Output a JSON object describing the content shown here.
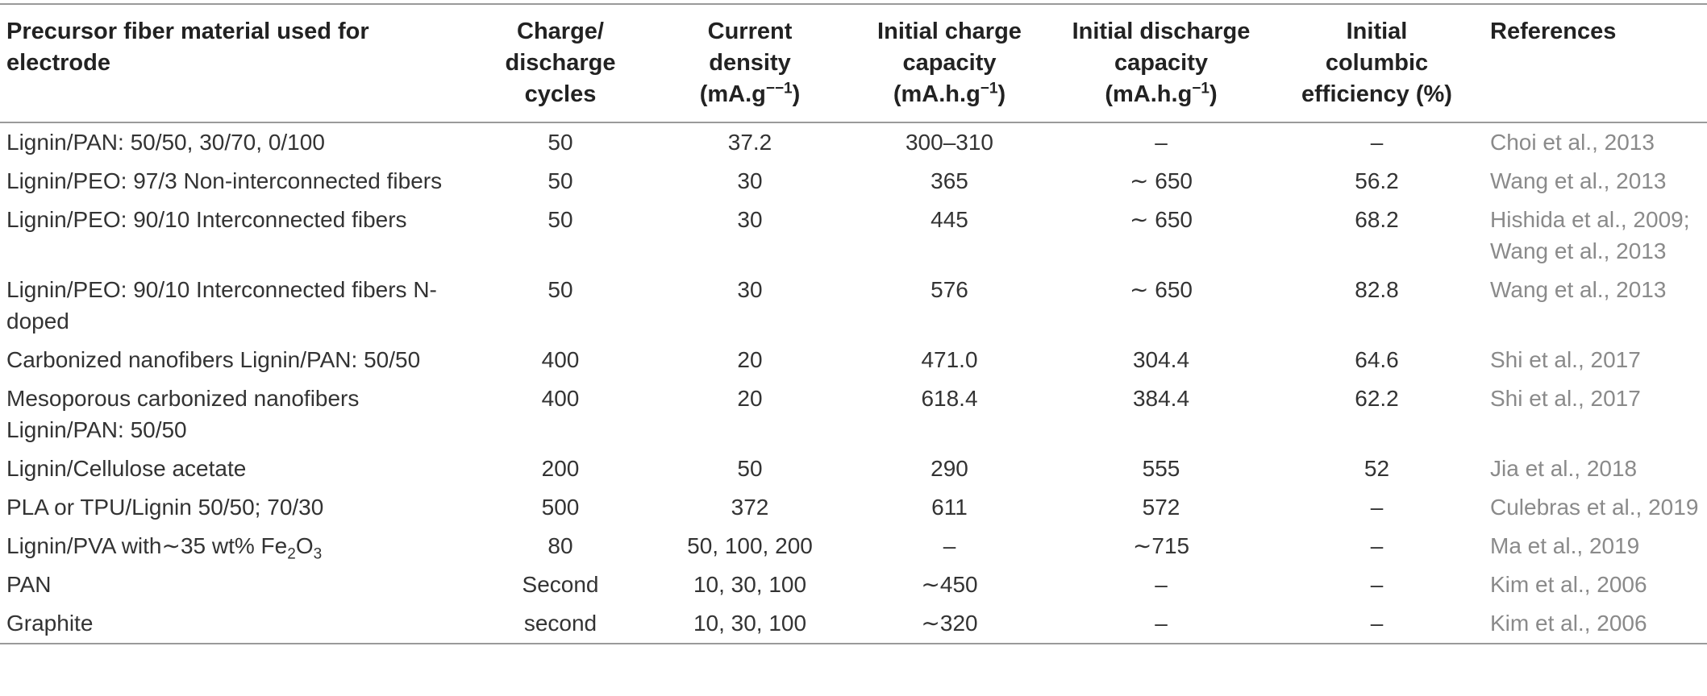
{
  "headers": [
    "Precursor fiber material used for electrode",
    "Charge/ discharge cycles",
    "Current density (mA.g−−1)",
    "Initial charge capacity (mA.h.g−1)",
    "Initial discharge capacity (mA.h.g−1)",
    "Initial columbic efficiency (%)",
    "References"
  ],
  "rows": [
    {
      "material": "Lignin/PAN: 50/50, 30/70, 0/100",
      "cycles": "50",
      "current": "37.2",
      "charge": "300–310",
      "discharge": "–",
      "efficiency": "–",
      "refs": [
        "Choi et al., 2013"
      ]
    },
    {
      "material": "Lignin/PEO: 97/3 Non-interconnected fibers",
      "cycles": "50",
      "current": "30",
      "charge": "365",
      "discharge": "∼ 650",
      "efficiency": "56.2",
      "refs": [
        "Wang et al., 2013"
      ]
    },
    {
      "material": "Lignin/PEO: 90/10 Interconnected fibers",
      "cycles": "50",
      "current": "30",
      "charge": "445",
      "discharge": "∼ 650",
      "efficiency": "68.2",
      "refs": [
        "Hishida et al., 2009;",
        "Wang et al., 2013"
      ]
    },
    {
      "material": "Lignin/PEO: 90/10 Interconnected fibers N-doped",
      "cycles": "50",
      "current": "30",
      "charge": "576",
      "discharge": "∼ 650",
      "efficiency": "82.8",
      "refs": [
        "Wang et al., 2013"
      ]
    },
    {
      "material": "Carbonized nanofibers Lignin/PAN: 50/50",
      "cycles": "400",
      "current": "20",
      "charge": "471.0",
      "discharge": "304.4",
      "efficiency": "64.6",
      "refs": [
        "Shi et al., 2017"
      ]
    },
    {
      "material": "Mesoporous carbonized nanofibers Lignin/PAN: 50/50",
      "cycles": "400",
      "current": "20",
      "charge": "618.4",
      "discharge": "384.4",
      "efficiency": "62.2",
      "refs": [
        "Shi et al., 2017"
      ]
    },
    {
      "material": "Lignin/Cellulose acetate",
      "cycles": "200",
      "current": "50",
      "charge": "290",
      "discharge": "555",
      "efficiency": "52",
      "refs": [
        "Jia et al., 2018"
      ]
    },
    {
      "material": "PLA or TPU/Lignin 50/50; 70/30",
      "cycles": "500",
      "current": "372",
      "charge": "611",
      "discharge": "572",
      "efficiency": "–",
      "refs": [
        "Culebras et al., 2019"
      ]
    },
    {
      "material": "Lignin/PVA with∼35 wt% Fe2O3",
      "cycles": "80",
      "current": "50, 100, 200",
      "charge": "–",
      "discharge": "∼715",
      "efficiency": "–",
      "refs": [
        "Ma et al., 2019"
      ]
    },
    {
      "material": "PAN",
      "cycles": "Second",
      "current": "10, 30, 100",
      "charge": "∼450",
      "discharge": "–",
      "efficiency": "–",
      "refs": [
        "Kim et al., 2006"
      ]
    },
    {
      "material": "Graphite",
      "cycles": "second",
      "current": "10, 30, 100",
      "charge": "∼320",
      "discharge": "–",
      "efficiency": "–",
      "refs": [
        "Kim et al., 2006"
      ]
    }
  ]
}
